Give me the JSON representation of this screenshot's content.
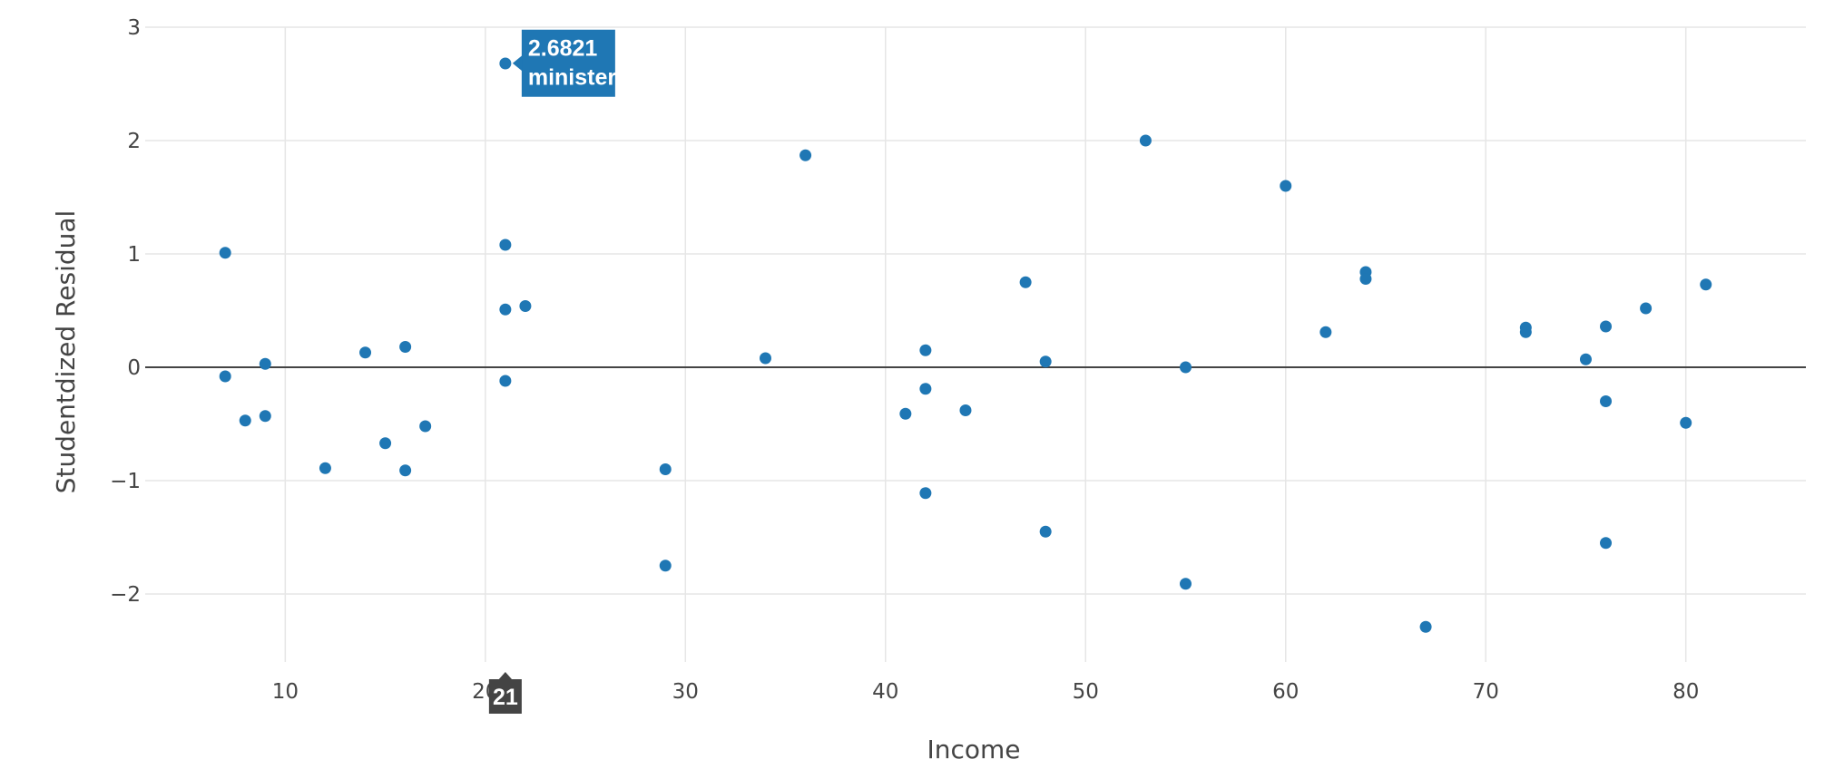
{
  "chart_data": {
    "type": "scatter",
    "xlabel": "Income",
    "ylabel": "Studentdized Residual",
    "xlim": [
      3,
      86
    ],
    "ylim": [
      -2.6,
      3.0
    ],
    "x_ticks": [
      10,
      20,
      30,
      40,
      50,
      60,
      70,
      80
    ],
    "y_ticks": [
      -2,
      -1,
      0,
      1,
      2,
      3
    ],
    "y_tick_labels": [
      "−2",
      "−1",
      "0",
      "1",
      "2",
      "3"
    ],
    "grid": true,
    "zero_line": true,
    "marker_color": "#1f77b4",
    "points": [
      {
        "x": 7,
        "y": 1.01
      },
      {
        "x": 7,
        "y": -0.08
      },
      {
        "x": 8,
        "y": -0.47
      },
      {
        "x": 9,
        "y": 0.03
      },
      {
        "x": 9,
        "y": -0.43
      },
      {
        "x": 12,
        "y": -0.89
      },
      {
        "x": 14,
        "y": 0.13
      },
      {
        "x": 15,
        "y": -0.67
      },
      {
        "x": 16,
        "y": 0.18
      },
      {
        "x": 16,
        "y": -0.91
      },
      {
        "x": 17,
        "y": -0.52
      },
      {
        "x": 21,
        "y": 2.68
      },
      {
        "x": 21,
        "y": 1.08
      },
      {
        "x": 21,
        "y": 0.51
      },
      {
        "x": 21,
        "y": -0.12
      },
      {
        "x": 22,
        "y": 0.54
      },
      {
        "x": 29,
        "y": -0.9
      },
      {
        "x": 29,
        "y": -1.75
      },
      {
        "x": 34,
        "y": 0.08
      },
      {
        "x": 36,
        "y": 1.87
      },
      {
        "x": 41,
        "y": -0.41
      },
      {
        "x": 42,
        "y": 0.15
      },
      {
        "x": 42,
        "y": -0.19
      },
      {
        "x": 42,
        "y": -1.11
      },
      {
        "x": 44,
        "y": -0.38
      },
      {
        "x": 47,
        "y": 0.75
      },
      {
        "x": 48,
        "y": 0.05
      },
      {
        "x": 48,
        "y": -1.45
      },
      {
        "x": 53,
        "y": 2.0
      },
      {
        "x": 55,
        "y": 0.0
      },
      {
        "x": 55,
        "y": -1.91
      },
      {
        "x": 60,
        "y": 1.6
      },
      {
        "x": 62,
        "y": 0.31
      },
      {
        "x": 64,
        "y": 0.84
      },
      {
        "x": 64,
        "y": 0.78
      },
      {
        "x": 67,
        "y": -2.29
      },
      {
        "x": 72,
        "y": 0.35
      },
      {
        "x": 72,
        "y": 0.31
      },
      {
        "x": 75,
        "y": 0.07
      },
      {
        "x": 76,
        "y": 0.36
      },
      {
        "x": 76,
        "y": -0.3
      },
      {
        "x": 76,
        "y": -1.55
      },
      {
        "x": 78,
        "y": 0.52
      },
      {
        "x": 80,
        "y": -0.49
      },
      {
        "x": 81,
        "y": 0.73
      }
    ],
    "hover": {
      "x": 21,
      "y": 2.6821,
      "value_text": "2.6821",
      "label_text": "minister",
      "x_label": "21",
      "label_color": "#1f77b4",
      "x_label_color": "#444444"
    }
  }
}
